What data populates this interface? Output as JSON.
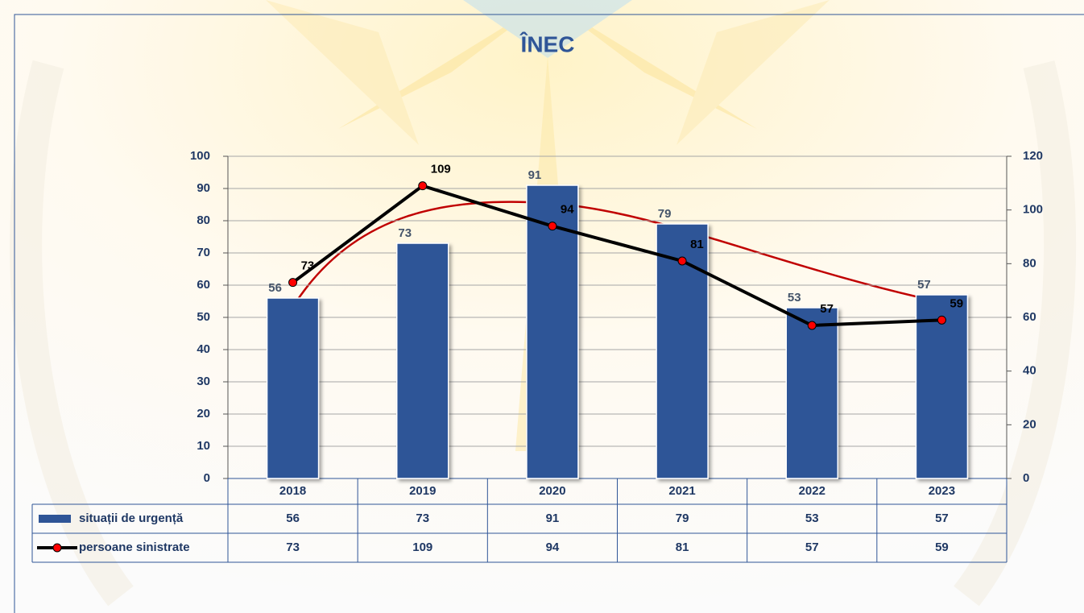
{
  "chart_data": {
    "type": "combo",
    "title": "ÎNEC",
    "categories": [
      "2018",
      "2019",
      "2020",
      "2021",
      "2022",
      "2023"
    ],
    "series": [
      {
        "name": "situații de urgență",
        "type": "bar",
        "color": "#2f5597",
        "label_color": "#44546a",
        "values": [
          56,
          73,
          91,
          79,
          53,
          57
        ]
      },
      {
        "name": "persoane sinistrate",
        "type": "line",
        "axis": "y2",
        "color": "#000000",
        "marker_color": "#ff0000",
        "values": [
          73,
          109,
          94,
          81,
          57,
          59
        ]
      }
    ],
    "ylim": [
      0,
      100
    ],
    "yticks": [
      0,
      10,
      20,
      30,
      40,
      50,
      60,
      70,
      80,
      90,
      100
    ],
    "y2lim": [
      0,
      120
    ],
    "y2ticks": [
      0,
      20,
      40,
      60,
      80,
      100,
      120
    ],
    "grid": true,
    "data_table": true
  }
}
